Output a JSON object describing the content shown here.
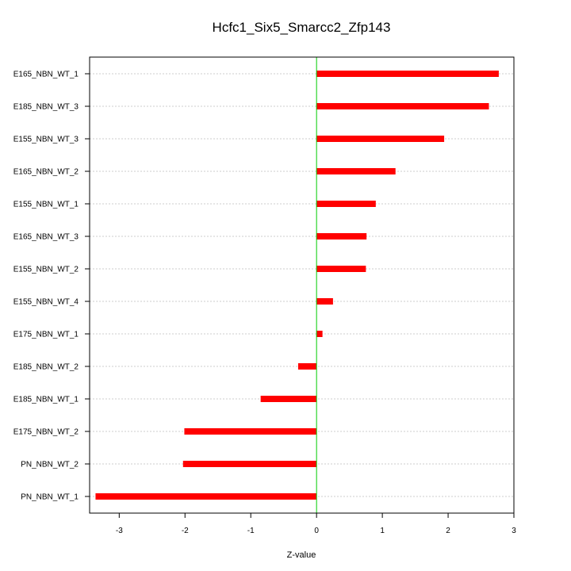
{
  "chart_data": {
    "type": "bar",
    "orientation": "horizontal",
    "title": "Hcfc1_Six5_Smarcc2_Zfp143",
    "xlabel": "Z-value",
    "ylabel": "",
    "xlim": [
      -3.45,
      3.0
    ],
    "xticks": [
      -3,
      -2,
      -1,
      0,
      1,
      2,
      3
    ],
    "categories": [
      "E165_NBN_WT_1",
      "E185_NBN_WT_3",
      "E155_NBN_WT_3",
      "E165_NBN_WT_2",
      "E155_NBN_WT_1",
      "E165_NBN_WT_3",
      "E155_NBN_WT_2",
      "E155_NBN_WT_4",
      "E175_NBN_WT_1",
      "E185_NBN_WT_2",
      "E185_NBN_WT_1",
      "E175_NBN_WT_2",
      "PN_NBN_WT_2",
      "PN_NBN_WT_1"
    ],
    "values": [
      2.77,
      2.62,
      1.94,
      1.2,
      0.9,
      0.76,
      0.75,
      0.25,
      0.09,
      -0.28,
      -0.85,
      -2.01,
      -2.03,
      -3.36
    ],
    "grid": true,
    "bar_color": "#ff0000",
    "zero_line_color": "#00cc00"
  }
}
